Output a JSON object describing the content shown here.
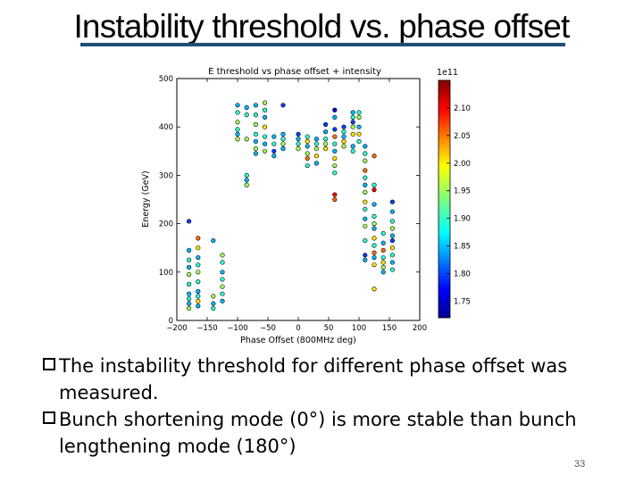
{
  "slide": {
    "title": "Instability threshold vs. phase offset",
    "bullets": [
      "The instability threshold for different phase offset was measured.",
      "Bunch shortening mode (0°) is more stable than bunch lengthening mode (180°)"
    ],
    "page_number": "33"
  },
  "colors": {
    "title_underline": "#1f4e79"
  },
  "chart_data": {
    "type": "scatter",
    "title": "E threshold vs phase offset + intensity",
    "xlabel": "Phase Offset (800MHz deg)",
    "ylabel": "Energy (GeV)",
    "xlim": [
      -200,
      200
    ],
    "ylim": [
      0,
      500
    ],
    "xticks": [
      -200,
      -150,
      -100,
      -50,
      0,
      50,
      100,
      150,
      200
    ],
    "yticks": [
      0,
      100,
      200,
      300,
      400,
      500
    ],
    "x_tick_labels": [
      "−200",
      "−150",
      "−100",
      "−50",
      "0",
      "50",
      "100",
      "150",
      "200"
    ],
    "y_tick_labels": [
      "0",
      "100",
      "200",
      "300",
      "400",
      "500"
    ],
    "grid": false,
    "colorbar": {
      "scale_label": "1e11",
      "range": [
        1.72,
        2.15
      ],
      "ticks": [
        1.75,
        1.8,
        1.85,
        1.9,
        1.95,
        2.0,
        2.05,
        2.1
      ],
      "tick_labels": [
        "1.75",
        "1.80",
        "1.85",
        "1.90",
        "1.95",
        "2.00",
        "2.05",
        "2.10"
      ],
      "colormap": "jet"
    },
    "points": [
      [
        -180,
        205,
        1.8
      ],
      [
        -180,
        145,
        1.85
      ],
      [
        -180,
        125,
        1.9
      ],
      [
        -180,
        110,
        1.85
      ],
      [
        -180,
        95,
        1.95
      ],
      [
        -180,
        75,
        1.9
      ],
      [
        -180,
        55,
        1.85
      ],
      [
        -180,
        45,
        1.9
      ],
      [
        -180,
        35,
        1.85
      ],
      [
        -180,
        25,
        1.95
      ],
      [
        -165,
        170,
        2.05
      ],
      [
        -165,
        150,
        2.0
      ],
      [
        -165,
        130,
        1.85
      ],
      [
        -165,
        115,
        1.9
      ],
      [
        -165,
        100,
        1.95
      ],
      [
        -165,
        80,
        1.9
      ],
      [
        -165,
        60,
        1.85
      ],
      [
        -165,
        50,
        1.9
      ],
      [
        -165,
        40,
        2.0
      ],
      [
        -165,
        30,
        1.85
      ],
      [
        -140,
        165,
        1.85
      ],
      [
        -140,
        50,
        1.95
      ],
      [
        -140,
        35,
        1.85
      ],
      [
        -140,
        25,
        1.9
      ],
      [
        -125,
        135,
        1.95
      ],
      [
        -125,
        120,
        1.9
      ],
      [
        -125,
        100,
        1.85
      ],
      [
        -125,
        85,
        1.9
      ],
      [
        -125,
        70,
        1.95
      ],
      [
        -125,
        55,
        1.9
      ],
      [
        -125,
        40,
        1.85
      ],
      [
        -100,
        445,
        1.85
      ],
      [
        -100,
        430,
        1.9
      ],
      [
        -100,
        410,
        1.95
      ],
      [
        -100,
        395,
        1.9
      ],
      [
        -100,
        385,
        1.85
      ],
      [
        -100,
        375,
        1.95
      ],
      [
        -85,
        440,
        1.85
      ],
      [
        -85,
        425,
        1.9
      ],
      [
        -85,
        375,
        1.95
      ],
      [
        -85,
        300,
        1.9
      ],
      [
        -85,
        290,
        1.85
      ],
      [
        -85,
        280,
        1.95
      ],
      [
        -70,
        445,
        1.85
      ],
      [
        -70,
        425,
        1.9
      ],
      [
        -70,
        405,
        1.95
      ],
      [
        -70,
        385,
        1.9
      ],
      [
        -70,
        370,
        1.85
      ],
      [
        -70,
        355,
        1.95
      ],
      [
        -70,
        345,
        1.85
      ],
      [
        -55,
        450,
        1.95
      ],
      [
        -55,
        435,
        1.9
      ],
      [
        -55,
        420,
        1.85
      ],
      [
        -55,
        400,
        2.0
      ],
      [
        -55,
        380,
        1.9
      ],
      [
        -55,
        365,
        1.85
      ],
      [
        -55,
        350,
        1.95
      ],
      [
        -40,
        380,
        1.85
      ],
      [
        -40,
        365,
        1.9
      ],
      [
        -40,
        350,
        1.8
      ],
      [
        -40,
        340,
        1.85
      ],
      [
        -25,
        445,
        1.8
      ],
      [
        -25,
        385,
        1.85
      ],
      [
        -25,
        375,
        1.9
      ],
      [
        -25,
        365,
        1.95
      ],
      [
        -25,
        355,
        1.85
      ],
      [
        0,
        385,
        1.8
      ],
      [
        0,
        375,
        1.85
      ],
      [
        0,
        365,
        1.9
      ],
      [
        0,
        355,
        1.95
      ],
      [
        15,
        380,
        1.9
      ],
      [
        15,
        370,
        2.0
      ],
      [
        15,
        360,
        1.85
      ],
      [
        15,
        345,
        1.95
      ],
      [
        15,
        335,
        2.05
      ],
      [
        15,
        320,
        1.9
      ],
      [
        30,
        375,
        1.85
      ],
      [
        30,
        365,
        1.9
      ],
      [
        30,
        355,
        1.95
      ],
      [
        30,
        340,
        2.0
      ],
      [
        30,
        325,
        1.85
      ],
      [
        45,
        405,
        1.8
      ],
      [
        45,
        390,
        1.85
      ],
      [
        45,
        375,
        1.9
      ],
      [
        45,
        365,
        1.95
      ],
      [
        45,
        355,
        2.0
      ],
      [
        60,
        435,
        1.75
      ],
      [
        60,
        420,
        1.85
      ],
      [
        60,
        395,
        1.8
      ],
      [
        60,
        380,
        2.05
      ],
      [
        60,
        365,
        1.9
      ],
      [
        60,
        350,
        1.85
      ],
      [
        60,
        335,
        2.0
      ],
      [
        60,
        320,
        1.95
      ],
      [
        60,
        305,
        1.9
      ],
      [
        60,
        260,
        2.1
      ],
      [
        60,
        250,
        2.05
      ],
      [
        75,
        400,
        1.8
      ],
      [
        75,
        390,
        1.9
      ],
      [
        75,
        380,
        1.85
      ],
      [
        75,
        370,
        2.0
      ],
      [
        75,
        360,
        1.95
      ],
      [
        90,
        430,
        1.85
      ],
      [
        90,
        420,
        1.9
      ],
      [
        90,
        410,
        1.8
      ],
      [
        90,
        400,
        1.95
      ],
      [
        90,
        385,
        2.0
      ],
      [
        90,
        360,
        1.85
      ],
      [
        90,
        350,
        1.9
      ],
      [
        100,
        430,
        1.9
      ],
      [
        100,
        420,
        1.95
      ],
      [
        100,
        400,
        1.85
      ],
      [
        100,
        385,
        2.0
      ],
      [
        100,
        370,
        1.9
      ],
      [
        110,
        360,
        1.85
      ],
      [
        110,
        345,
        1.9
      ],
      [
        110,
        330,
        1.95
      ],
      [
        110,
        310,
        2.05
      ],
      [
        110,
        295,
        1.9
      ],
      [
        110,
        280,
        1.85
      ],
      [
        110,
        265,
        1.95
      ],
      [
        110,
        245,
        2.0
      ],
      [
        110,
        230,
        1.9
      ],
      [
        110,
        210,
        1.85
      ],
      [
        110,
        195,
        1.95
      ],
      [
        110,
        165,
        1.9
      ],
      [
        110,
        135,
        1.8
      ],
      [
        110,
        125,
        1.85
      ],
      [
        125,
        340,
        2.05
      ],
      [
        125,
        280,
        1.9
      ],
      [
        125,
        270,
        2.1
      ],
      [
        125,
        240,
        1.85
      ],
      [
        125,
        215,
        1.9
      ],
      [
        125,
        200,
        1.95
      ],
      [
        125,
        190,
        1.85
      ],
      [
        125,
        170,
        2.0
      ],
      [
        125,
        155,
        1.9
      ],
      [
        125,
        140,
        2.05
      ],
      [
        125,
        130,
        1.85
      ],
      [
        125,
        115,
        2.0
      ],
      [
        125,
        65,
        2.0
      ],
      [
        140,
        180,
        1.9
      ],
      [
        140,
        160,
        1.85
      ],
      [
        140,
        145,
        2.05
      ],
      [
        140,
        130,
        1.9
      ],
      [
        140,
        120,
        2.0
      ],
      [
        140,
        110,
        1.95
      ],
      [
        140,
        100,
        1.85
      ],
      [
        155,
        245,
        1.8
      ],
      [
        155,
        225,
        1.85
      ],
      [
        155,
        205,
        1.9
      ],
      [
        155,
        190,
        1.95
      ],
      [
        155,
        175,
        1.85
      ],
      [
        155,
        165,
        1.8
      ],
      [
        155,
        150,
        2.0
      ],
      [
        155,
        135,
        1.9
      ],
      [
        155,
        120,
        1.85
      ],
      [
        155,
        105,
        1.9
      ]
    ]
  }
}
